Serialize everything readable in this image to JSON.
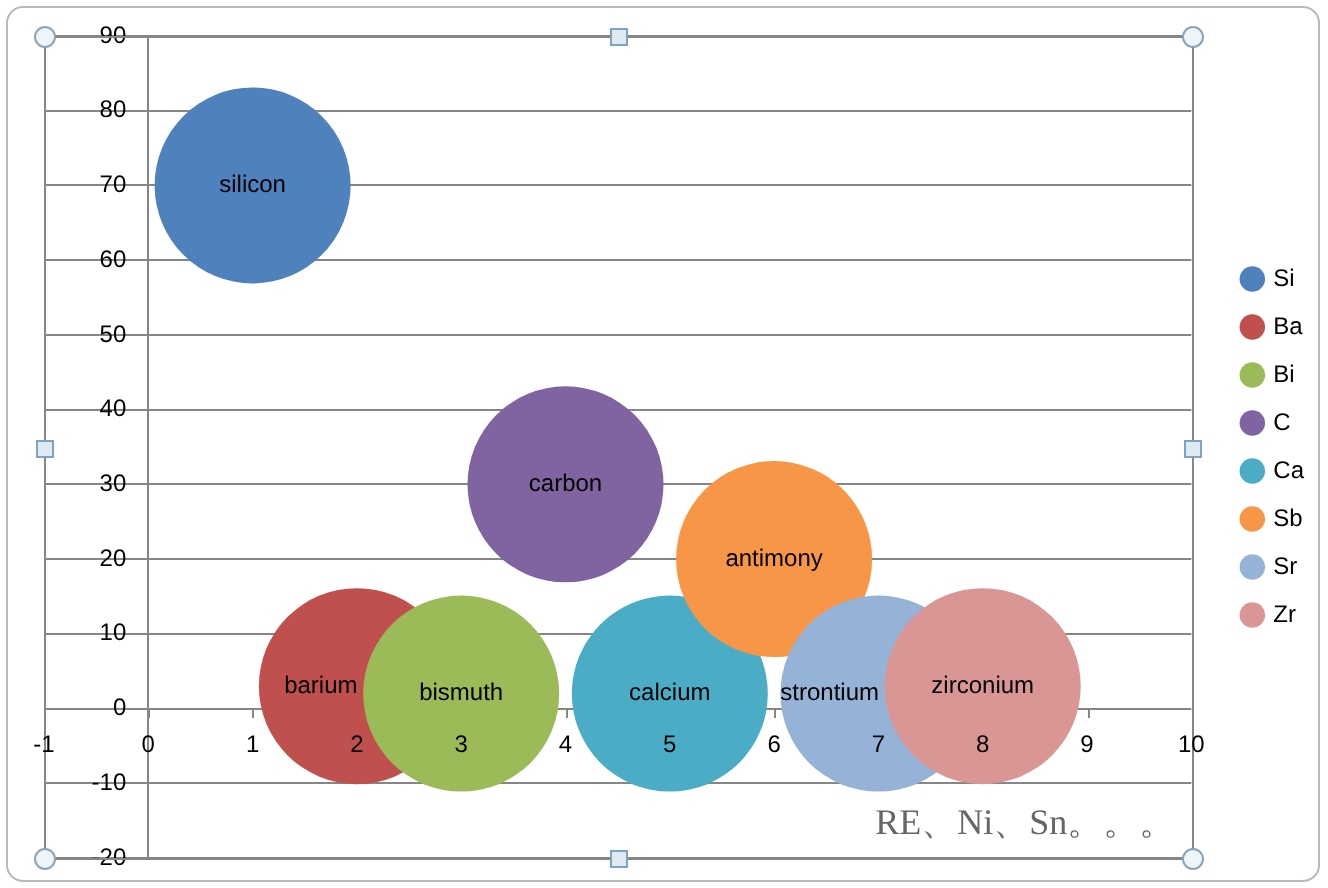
{
  "chart_data": {
    "type": "bubble",
    "series": [
      {
        "name": "Si",
        "color": "#4f81bd",
        "x": [
          1
        ],
        "values": [
          70
        ],
        "sizes": [
          1
        ]
      },
      {
        "name": "Ba",
        "color": "#c0504d",
        "x": [
          2
        ],
        "values": [
          3
        ],
        "sizes": [
          1
        ]
      },
      {
        "name": "Bi",
        "color": "#9bbb59",
        "x": [
          3
        ],
        "values": [
          2
        ],
        "sizes": [
          1
        ]
      },
      {
        "name": "C",
        "color": "#8064a2",
        "x": [
          4
        ],
        "values": [
          30
        ],
        "sizes": [
          1
        ]
      },
      {
        "name": "Ca",
        "color": "#4bacc6",
        "x": [
          5
        ],
        "values": [
          2
        ],
        "sizes": [
          1
        ]
      },
      {
        "name": "Sb",
        "color": "#f79646",
        "x": [
          6
        ],
        "values": [
          20
        ],
        "sizes": [
          1
        ]
      },
      {
        "name": "Sr",
        "color": "#95b3d7",
        "x": [
          7
        ],
        "values": [
          2
        ],
        "sizes": [
          1
        ]
      },
      {
        "name": "Zr",
        "color": "#d99694",
        "x": [
          8
        ],
        "values": [
          3
        ],
        "sizes": [
          1
        ]
      }
    ],
    "xlim": [
      -1,
      10
    ],
    "xticks": [
      -1,
      0,
      1,
      2,
      3,
      4,
      5,
      6,
      7,
      8,
      9,
      10
    ],
    "ylim": [
      -20,
      90
    ],
    "yticks": [
      -20,
      -10,
      0,
      10,
      20,
      30,
      40,
      50,
      60,
      70,
      80,
      90
    ],
    "grid": "y",
    "legend": "right",
    "annotations": [
      {
        "text": "silicon",
        "x": 1,
        "y": 70
      },
      {
        "text": "barium",
        "x": 2,
        "y": 3
      },
      {
        "text": "bismuth",
        "x": 3,
        "y": 2
      },
      {
        "text": "carbon",
        "x": 4,
        "y": 30
      },
      {
        "text": "calcium",
        "x": 5,
        "y": 2
      },
      {
        "text": "antimony",
        "x": 6,
        "y": 20
      },
      {
        "text": "strontium",
        "x": 7,
        "y": 2
      },
      {
        "text": "zirconium",
        "x": 8,
        "y": 3
      },
      "RE、Ni、Sn。。。"
    ]
  }
}
